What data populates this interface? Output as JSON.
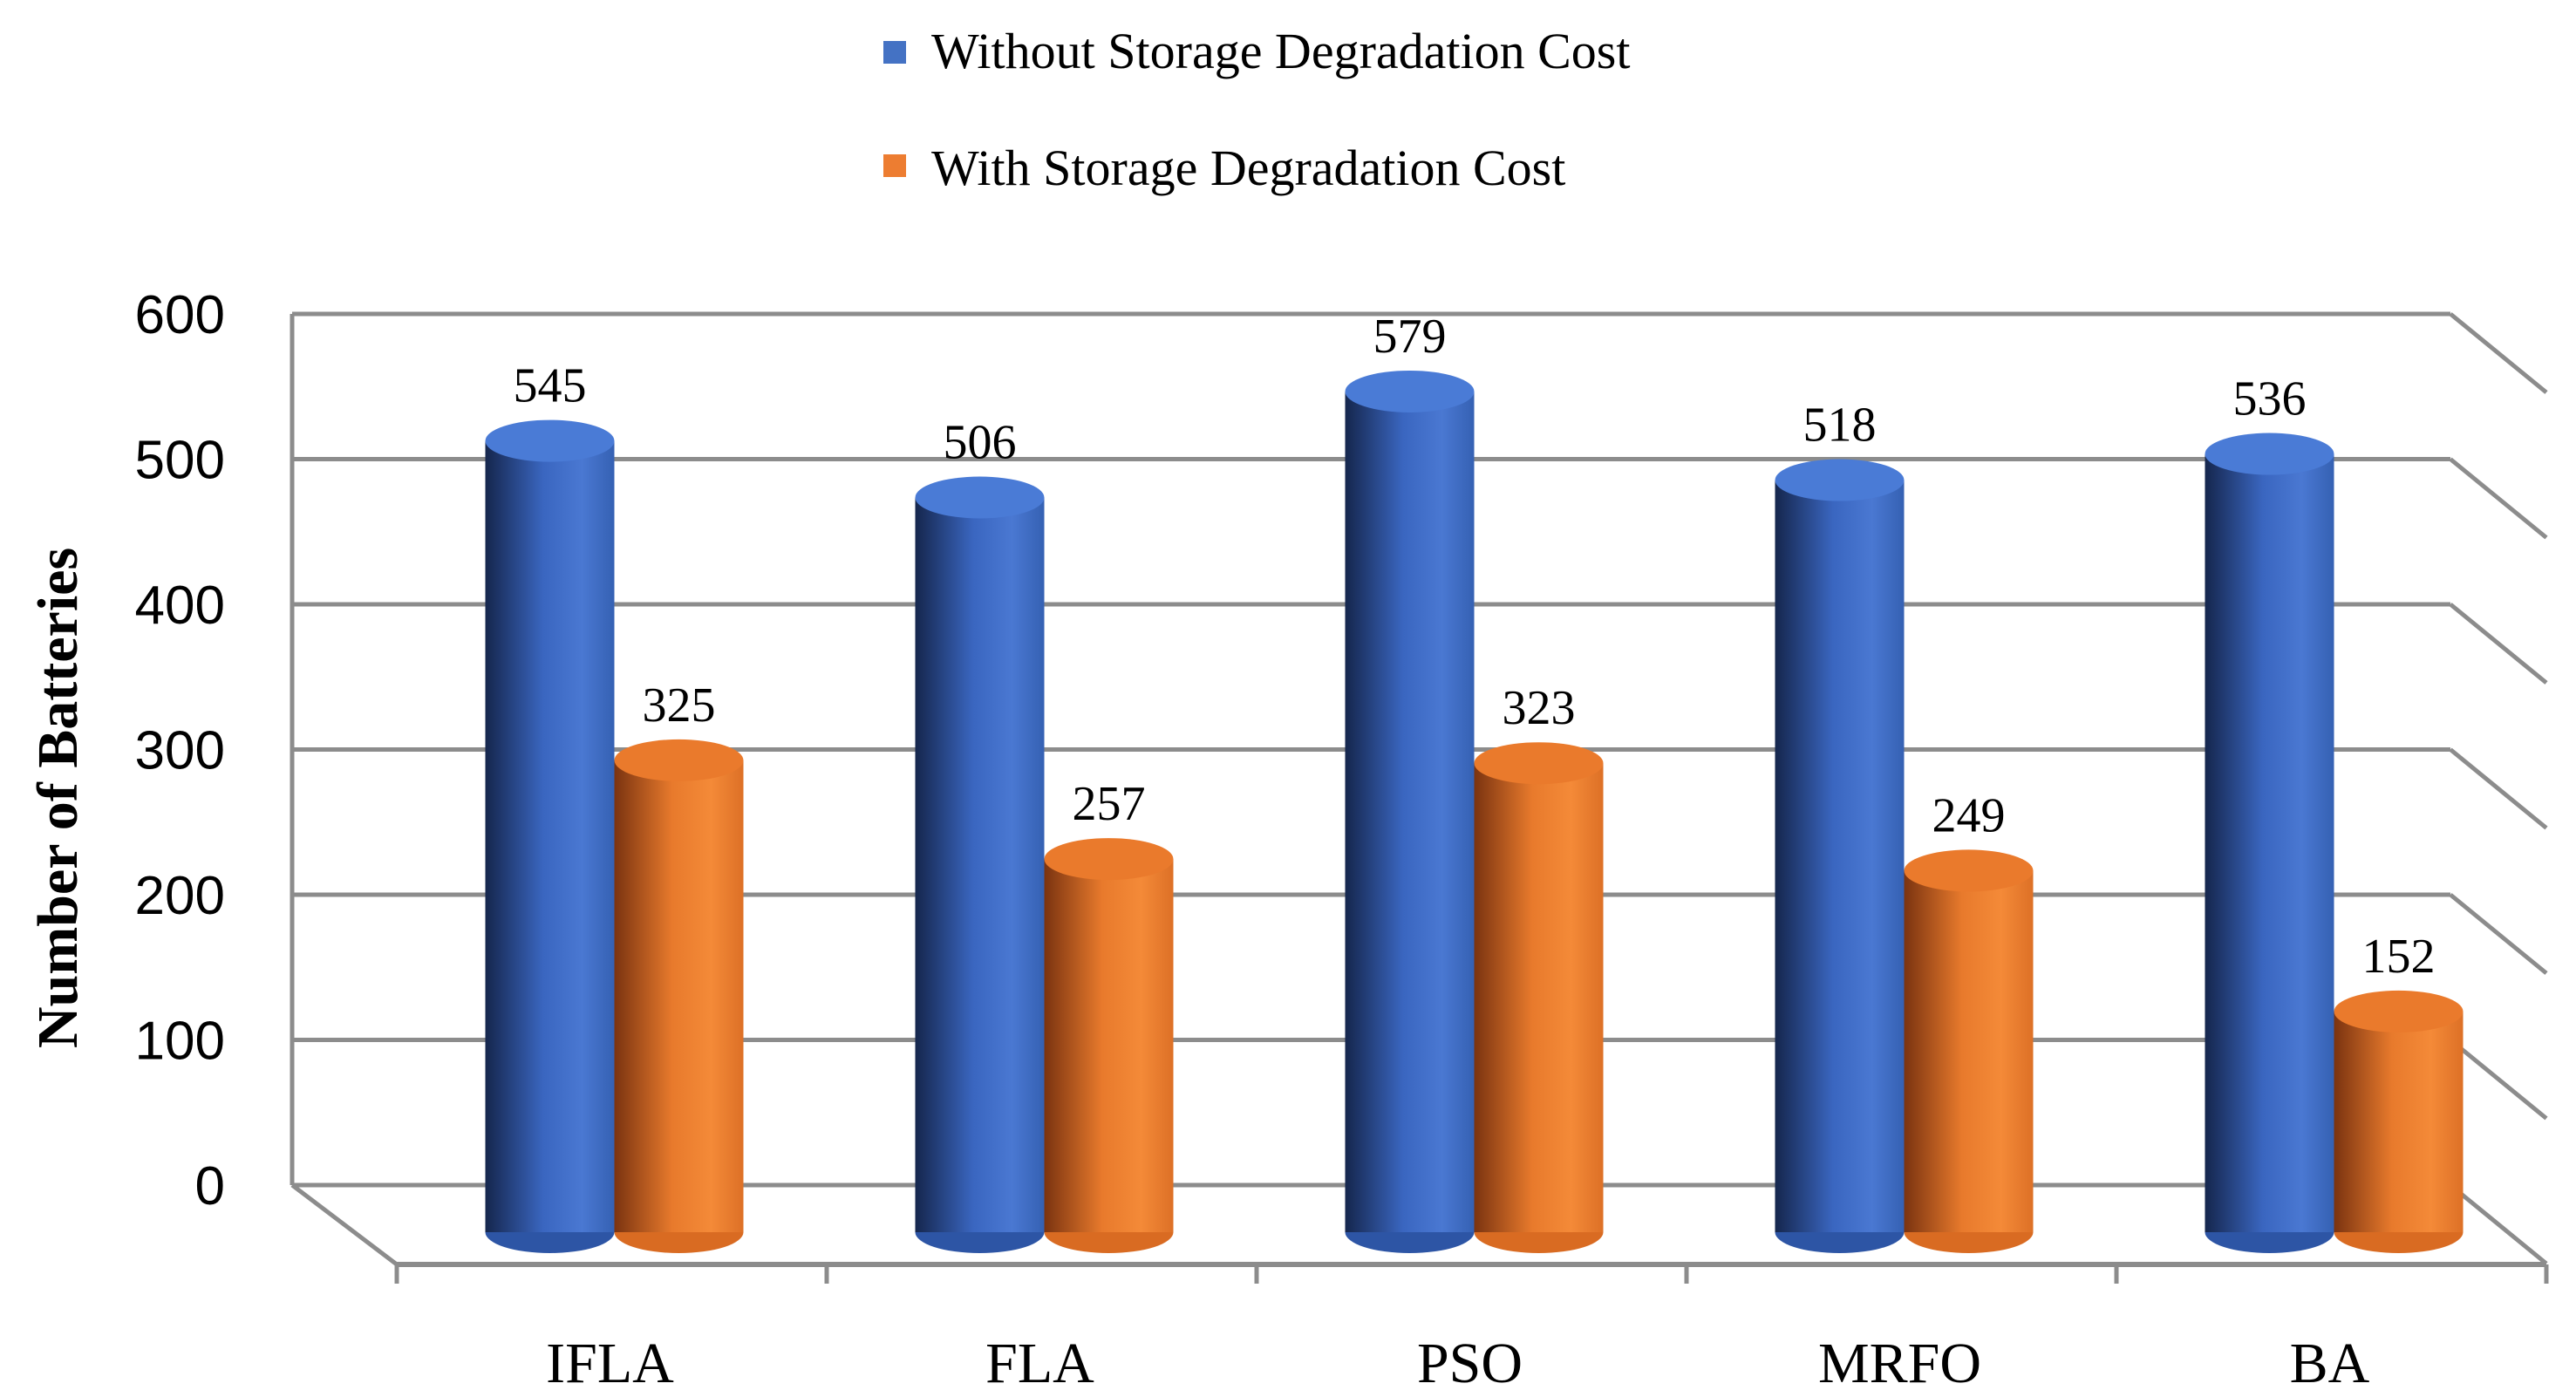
{
  "chart_data": {
    "type": "bar",
    "title": "",
    "xlabel": "",
    "ylabel": "Number of Batteries",
    "ylim": [
      0,
      600
    ],
    "yticks": [
      0,
      100,
      200,
      300,
      400,
      500,
      600
    ],
    "grid": true,
    "legend_position": "top-center",
    "categories": [
      "IFLA",
      "FLA",
      "PSO",
      "MRFO",
      "BA"
    ],
    "series": [
      {
        "name": "Without Storage Degradation Cost",
        "color": "#4472C4",
        "values": [
          545,
          506,
          579,
          518,
          536
        ]
      },
      {
        "name": "With Storage Degradation Cost",
        "color": "#ED7D31",
        "values": [
          325,
          257,
          323,
          249,
          152
        ]
      }
    ]
  }
}
